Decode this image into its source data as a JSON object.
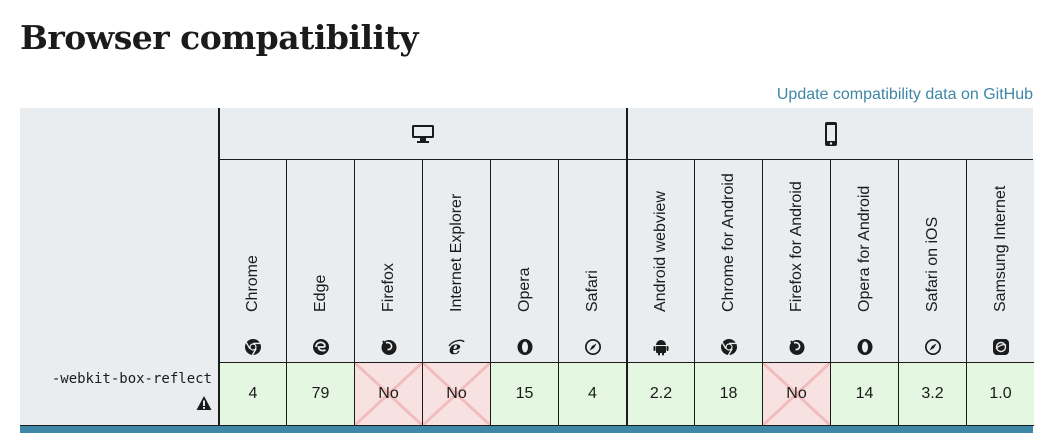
{
  "title": "Browser compatibility",
  "github_link": "Update compatibility data on GitHub",
  "platforms": {
    "desktop": "desktop-icon",
    "mobile": "mobile-icon"
  },
  "browsers": [
    {
      "name": "Chrome",
      "icon": "chrome-icon"
    },
    {
      "name": "Edge",
      "icon": "edge-icon"
    },
    {
      "name": "Firefox",
      "icon": "firefox-icon"
    },
    {
      "name": "Internet Explorer",
      "icon": "ie-icon"
    },
    {
      "name": "Opera",
      "icon": "opera-icon"
    },
    {
      "name": "Safari",
      "icon": "safari-icon"
    },
    {
      "name": "Android webview",
      "icon": "android-icon"
    },
    {
      "name": "Chrome for Android",
      "icon": "chrome-icon"
    },
    {
      "name": "Firefox for Android",
      "icon": "firefox-icon"
    },
    {
      "name": "Opera for Android",
      "icon": "opera-icon"
    },
    {
      "name": "Safari on iOS",
      "icon": "safari-icon"
    },
    {
      "name": "Samsung Internet",
      "icon": "samsung-icon"
    }
  ],
  "feature": {
    "name": "-webkit-box-reflect",
    "warning_icon": "warning-icon",
    "support": [
      "4",
      "79",
      "No",
      "No",
      "15",
      "4",
      "2.2",
      "18",
      "No",
      "14",
      "3.2",
      "1.0"
    ]
  },
  "colors": {
    "yes_bg": "#e4f8e1",
    "no_bg": "#f8e1e1",
    "header_bg": "#e9edf0",
    "link": "#3f87a6"
  }
}
